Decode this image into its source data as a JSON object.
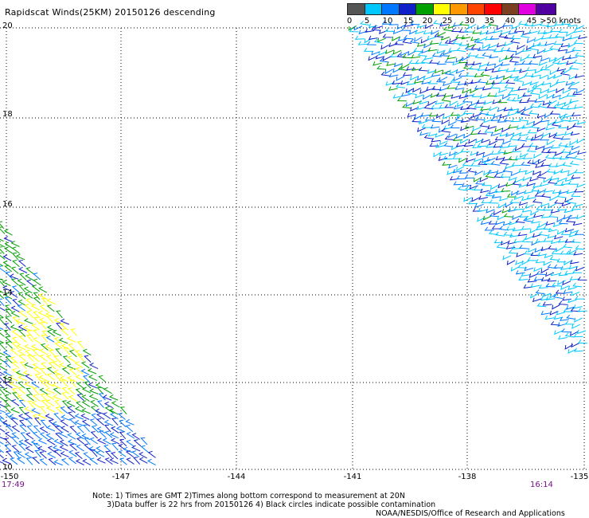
{
  "title": "Rapidscat Winds(25KM) 20150126 descending",
  "legend": {
    "labels": [
      "0",
      "5",
      "10",
      "15",
      "20",
      "25",
      "30",
      "35",
      "40",
      "45",
      ">50 knots"
    ],
    "colors": [
      "#555555",
      "#00c8ff",
      "#0078ff",
      "#1020c8",
      "#00a000",
      "#ffff00",
      "#ff9900",
      "#ff4400",
      "#ff0000",
      "#7a4020",
      "#e000e0",
      "#5000a0"
    ]
  },
  "map": {
    "lat_labels": [
      "20",
      "18",
      "16",
      "14",
      "12",
      "10"
    ],
    "lon_labels": [
      "-150",
      "-147",
      "-144",
      "-141",
      "-138",
      "-135"
    ],
    "time_left": "17:49",
    "time_right": "16:14"
  },
  "notes": [
    "Note: 1) Times are GMT 2)Times along bottom correspond to measurement at 20N",
    "      3)Data buffer is 22 hrs from 20150126 4) Black circles indicate possible contamination"
  ],
  "credit": "NOAA/NESDIS/Office of Research and Applications"
}
